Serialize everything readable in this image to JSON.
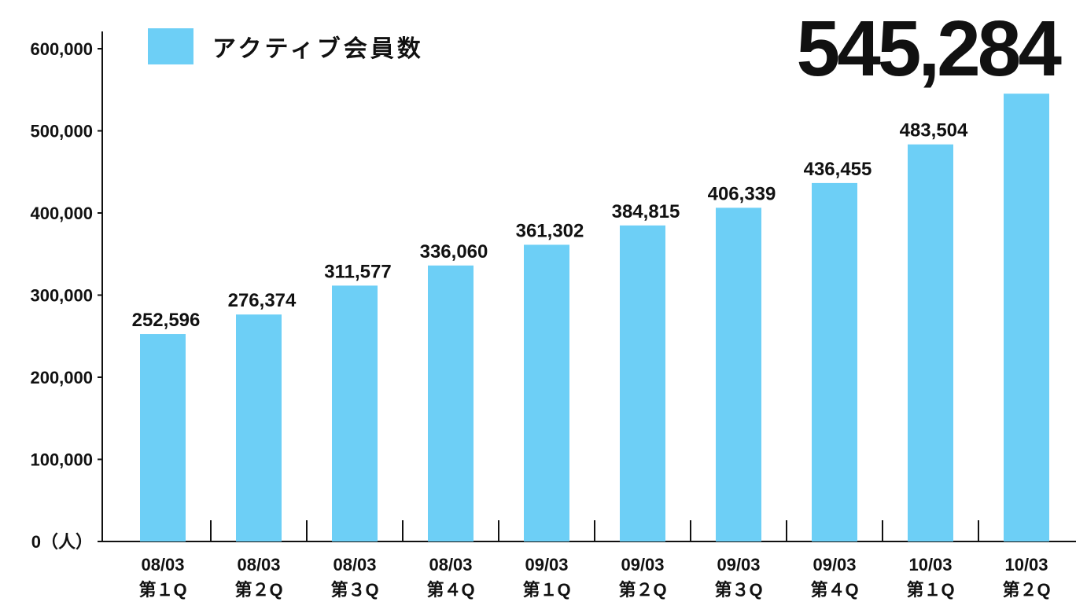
{
  "chart_data": {
    "type": "bar",
    "categories": [
      [
        "08/03",
        "第１Q"
      ],
      [
        "08/03",
        "第２Q"
      ],
      [
        "08/03",
        "第３Q"
      ],
      [
        "08/03",
        "第４Q"
      ],
      [
        "09/03",
        "第１Q"
      ],
      [
        "09/03",
        "第２Q"
      ],
      [
        "09/03",
        "第３Q"
      ],
      [
        "09/03",
        "第４Q"
      ],
      [
        "10/03",
        "第１Q"
      ],
      [
        "10/03",
        "第２Q"
      ]
    ],
    "series": [
      {
        "name": "アクティブ会員数",
        "color": "#6dcff6",
        "values": [
          252596,
          276374,
          311577,
          336060,
          361302,
          384815,
          406339,
          436455,
          483504,
          545284
        ],
        "value_labels": [
          "252,596",
          "276,374",
          "311,577",
          "336,060",
          "361,302",
          "384,815",
          "406,339",
          "436,455",
          "483,504",
          "545,284"
        ]
      }
    ],
    "ylim": [
      0,
      600000
    ],
    "yticks": [
      {
        "value": 0,
        "label": "0（人）"
      },
      {
        "value": 100000,
        "label": "100,000"
      },
      {
        "value": 200000,
        "label": "200,000"
      },
      {
        "value": 300000,
        "label": "300,000"
      },
      {
        "value": 400000,
        "label": "400,000"
      },
      {
        "value": 500000,
        "label": "500,000"
      },
      {
        "value": 600000,
        "label": "600,000"
      }
    ],
    "legend": "top-left"
  }
}
